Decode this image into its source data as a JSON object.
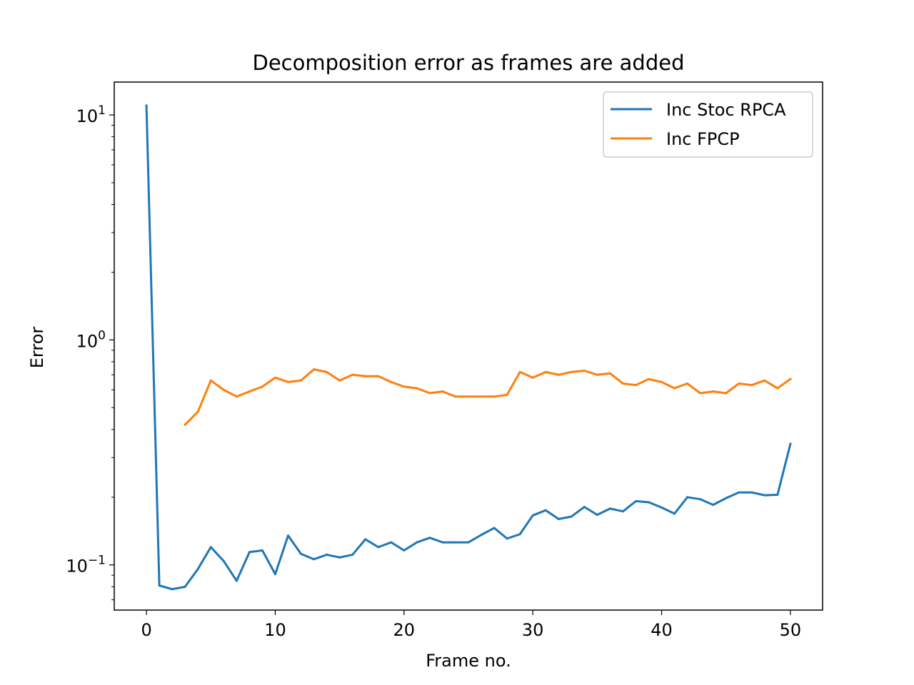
{
  "chart_data": {
    "type": "line",
    "title": "Decomposition error as frames are added",
    "xlabel": "Frame no.",
    "ylabel": "Error",
    "yscale": "log",
    "xlim": [
      -2.5,
      52.5
    ],
    "ylim": [
      0.063,
      14.0
    ],
    "xticks": [
      0,
      10,
      20,
      30,
      40,
      50
    ],
    "yticks": [
      {
        "value": 0.1,
        "base": "10",
        "exp": "−1"
      },
      {
        "value": 1,
        "base": "10",
        "exp": "0"
      },
      {
        "value": 10,
        "base": "10",
        "exp": "1"
      }
    ],
    "grid": false,
    "legend_position": "upper right",
    "series": [
      {
        "name": "Inc Stoc RPCA",
        "color": "#1f77b4",
        "x": [
          0,
          1,
          2,
          3,
          4,
          5,
          6,
          7,
          8,
          9,
          10,
          11,
          12,
          13,
          14,
          15,
          16,
          17,
          18,
          19,
          20,
          21,
          22,
          23,
          24,
          25,
          26,
          27,
          28,
          29,
          30,
          31,
          32,
          33,
          34,
          35,
          36,
          37,
          38,
          39,
          40,
          41,
          42,
          43,
          44,
          45,
          46,
          47,
          48,
          49,
          50
        ],
        "values": [
          11.0,
          0.081,
          0.078,
          0.08,
          0.096,
          0.12,
          0.104,
          0.085,
          0.114,
          0.116,
          0.091,
          0.135,
          0.112,
          0.106,
          0.111,
          0.108,
          0.111,
          0.13,
          0.12,
          0.126,
          0.116,
          0.126,
          0.132,
          0.126,
          0.126,
          0.126,
          0.136,
          0.146,
          0.131,
          0.137,
          0.166,
          0.175,
          0.16,
          0.164,
          0.181,
          0.167,
          0.178,
          0.173,
          0.192,
          0.19,
          0.18,
          0.169,
          0.2,
          0.196,
          0.185,
          0.198,
          0.21,
          0.21,
          0.204,
          0.205,
          0.345
        ]
      },
      {
        "name": "Inc FPCP",
        "color": "#ff7f0e",
        "x": [
          3,
          4,
          5,
          6,
          7,
          8,
          9,
          10,
          11,
          12,
          13,
          14,
          15,
          16,
          17,
          18,
          19,
          20,
          21,
          22,
          23,
          24,
          25,
          26,
          27,
          28,
          29,
          30,
          31,
          32,
          33,
          34,
          35,
          36,
          37,
          38,
          39,
          40,
          41,
          42,
          43,
          44,
          45,
          46,
          47,
          48,
          49,
          50
        ],
        "values": [
          0.42,
          0.48,
          0.66,
          0.6,
          0.56,
          0.59,
          0.62,
          0.68,
          0.65,
          0.66,
          0.74,
          0.72,
          0.66,
          0.7,
          0.69,
          0.69,
          0.65,
          0.62,
          0.61,
          0.58,
          0.59,
          0.56,
          0.56,
          0.56,
          0.56,
          0.57,
          0.72,
          0.68,
          0.72,
          0.7,
          0.72,
          0.73,
          0.7,
          0.71,
          0.64,
          0.63,
          0.67,
          0.65,
          0.61,
          0.64,
          0.58,
          0.59,
          0.58,
          0.64,
          0.63,
          0.66,
          0.61,
          0.67
        ]
      }
    ]
  }
}
